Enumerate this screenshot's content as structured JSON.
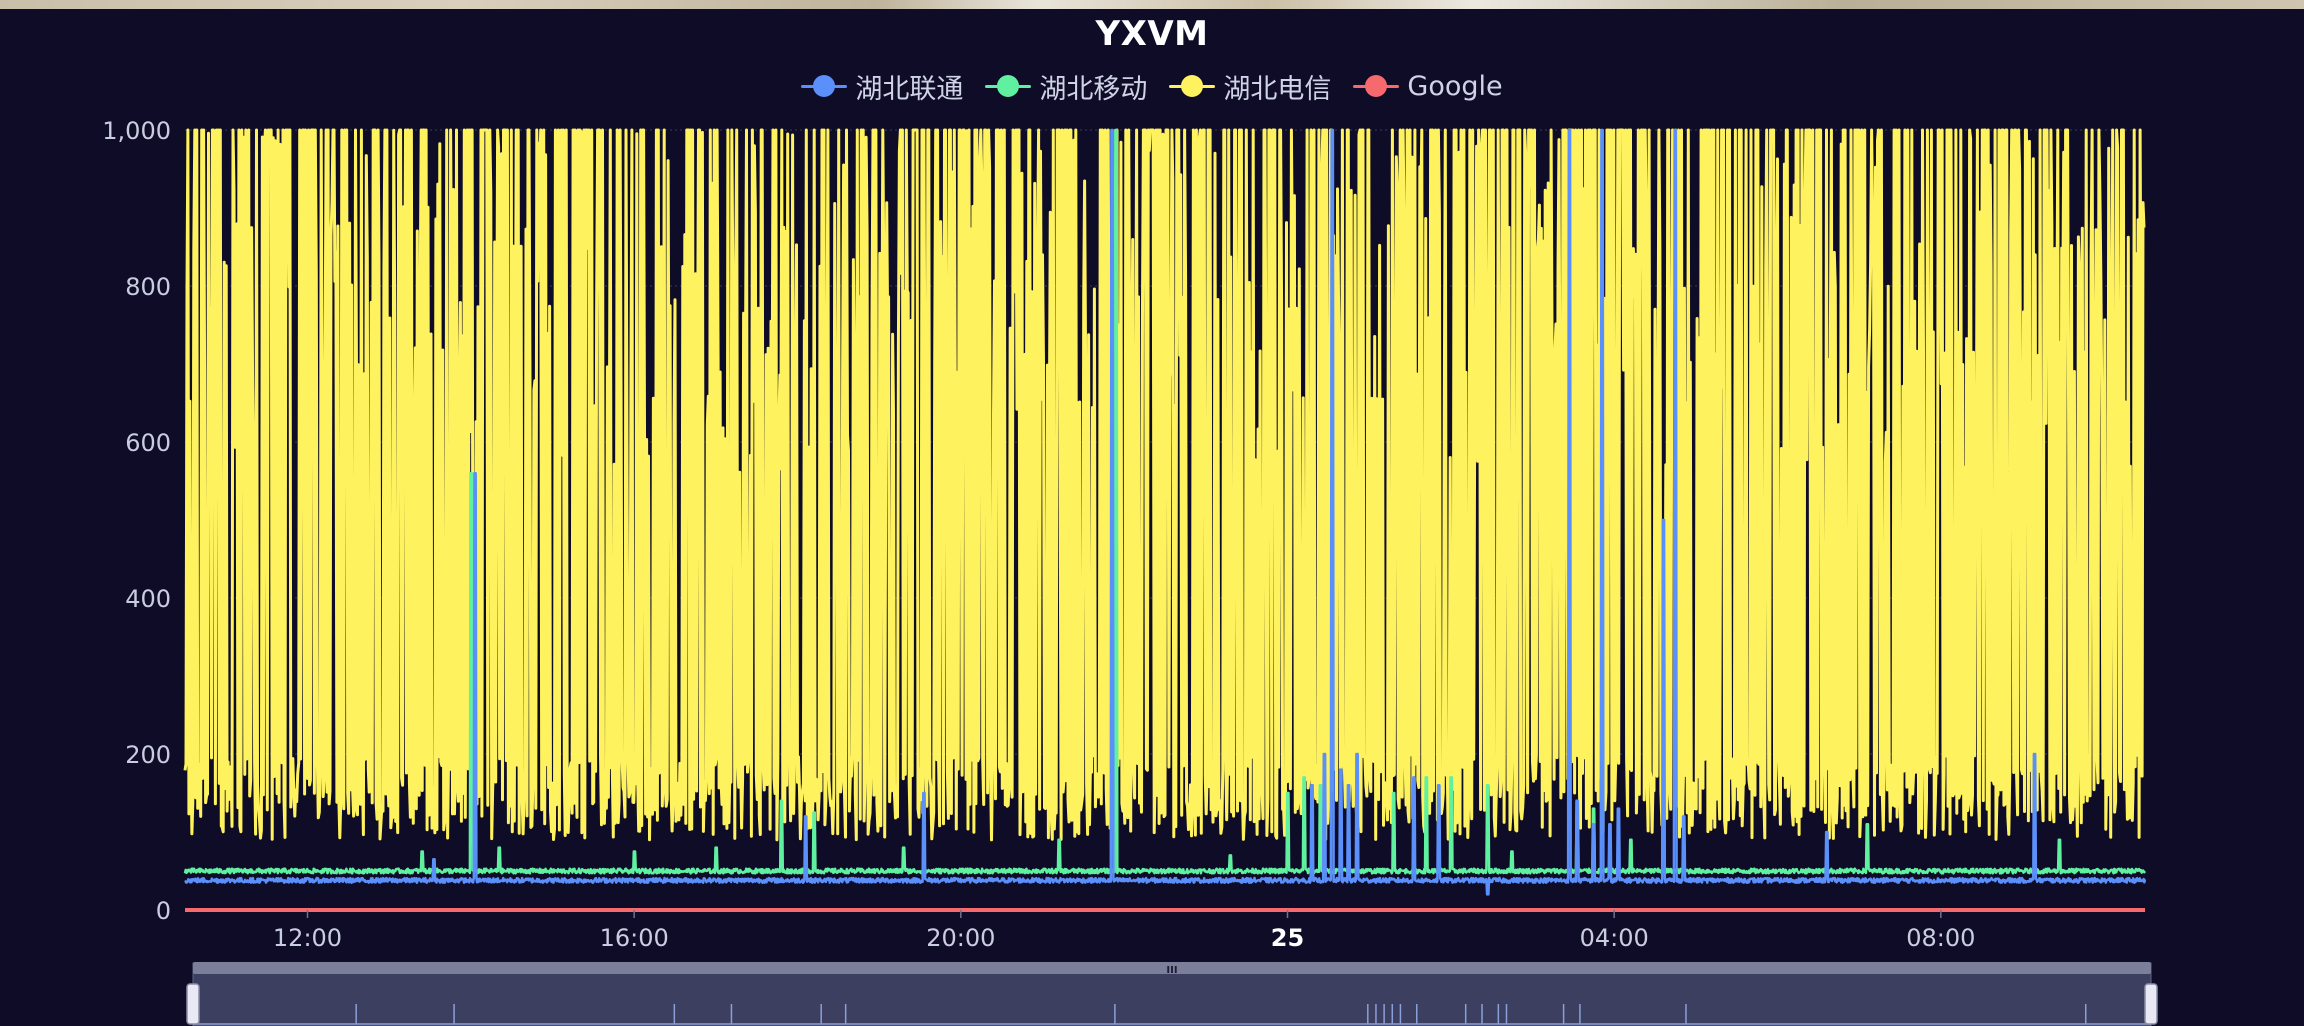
{
  "chart_data": {
    "type": "line",
    "title": "YXVM",
    "xlabel": "",
    "ylabel": "",
    "ylim": [
      0,
      1000
    ],
    "yticks": [
      0,
      200,
      400,
      600,
      800,
      1000
    ],
    "ytick_labels": [
      "0",
      "200",
      "400",
      "600",
      "800",
      "1,000"
    ],
    "x_range_hours": [
      10.5,
      34.5
    ],
    "xticks": [
      12,
      16,
      20,
      24,
      28,
      32
    ],
    "xtick_labels": [
      "12:00",
      "16:00",
      "20:00",
      "25",
      "04:00",
      "08:00"
    ],
    "xtick_bold": [
      false,
      false,
      false,
      true,
      false,
      false
    ],
    "grid": true,
    "legend_position": "top-center",
    "series": [
      {
        "name": "湖北联通",
        "color": "#5b8ff9",
        "baseline": 38,
        "spikes": [
          [
            13.55,
            65
          ],
          [
            14.05,
            560
          ],
          [
            18.1,
            120
          ],
          [
            19.55,
            150
          ],
          [
            21.85,
            1000
          ],
          [
            24.3,
            160
          ],
          [
            24.45,
            200
          ],
          [
            24.55,
            1000
          ],
          [
            24.65,
            180
          ],
          [
            24.75,
            160
          ],
          [
            24.85,
            200
          ],
          [
            25.55,
            170
          ],
          [
            25.85,
            160
          ],
          [
            26.45,
            20
          ],
          [
            27.45,
            1000
          ],
          [
            27.55,
            140
          ],
          [
            27.75,
            110
          ],
          [
            27.85,
            1000
          ],
          [
            27.95,
            110
          ],
          [
            28.05,
            130
          ],
          [
            28.6,
            500
          ],
          [
            28.75,
            1000
          ],
          [
            28.85,
            120
          ],
          [
            30.6,
            100
          ],
          [
            33.15,
            200
          ]
        ]
      },
      {
        "name": "湖北移动",
        "color": "#5ff0a0",
        "baseline": 50,
        "spikes": [
          [
            13.4,
            75
          ],
          [
            14.0,
            560
          ],
          [
            14.35,
            80
          ],
          [
            16.0,
            75
          ],
          [
            17.0,
            80
          ],
          [
            17.8,
            140
          ],
          [
            18.2,
            125
          ],
          [
            19.3,
            80
          ],
          [
            21.2,
            90
          ],
          [
            21.9,
            1000
          ],
          [
            23.3,
            70
          ],
          [
            24.0,
            150
          ],
          [
            24.2,
            170
          ],
          [
            24.4,
            160
          ],
          [
            25.3,
            150
          ],
          [
            25.7,
            170
          ],
          [
            26.0,
            170
          ],
          [
            26.45,
            160
          ],
          [
            26.75,
            75
          ],
          [
            27.55,
            140
          ],
          [
            27.75,
            130
          ],
          [
            28.2,
            90
          ],
          [
            31.1,
            110
          ],
          [
            33.45,
            90
          ]
        ]
      },
      {
        "name": "湖北电信",
        "color": "#fff25f",
        "baseline": 150,
        "ceiling": 1000
      },
      {
        "name": "Google",
        "color": "#f66a6e",
        "baseline": 0
      }
    ]
  },
  "datazoom": {
    "handle_glyph": "III",
    "spikes_hours": [
      12.5,
      13.7,
      16.4,
      17.1,
      18.2,
      18.5,
      21.8,
      24.9,
      25.0,
      25.1,
      25.2,
      25.3,
      25.5,
      26.1,
      26.3,
      26.5,
      26.6,
      27.3,
      27.5,
      28.8,
      33.7
    ]
  }
}
